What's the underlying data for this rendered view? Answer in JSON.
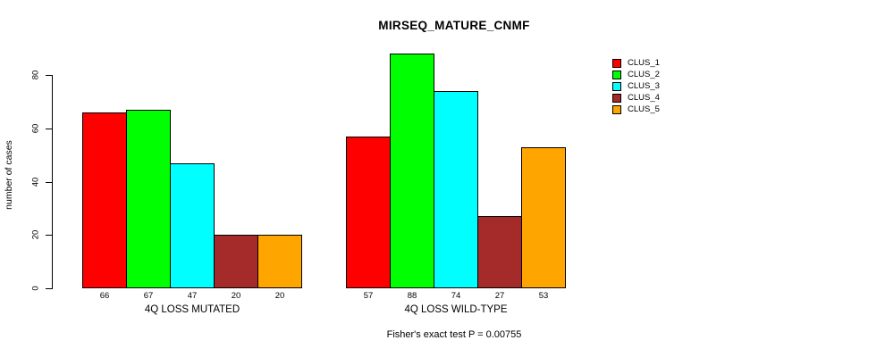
{
  "title": "MIRSEQ_MATURE_CNMF",
  "ylabel": "number of cases",
  "footer": "Fisher's exact test P = 0.00755",
  "chart_data": {
    "type": "bar",
    "title": "MIRSEQ_MATURE_CNMF",
    "ylabel": "number of cases",
    "xlabel": "",
    "ylim": [
      0,
      80
    ],
    "yticks": [
      0,
      20,
      40,
      60,
      80
    ],
    "grid": false,
    "legend_position": "top-right",
    "series": [
      "CLUS_1",
      "CLUS_2",
      "CLUS_3",
      "CLUS_4",
      "CLUS_5"
    ],
    "colors": [
      "#FF0000",
      "#00FF00",
      "#00FFFF",
      "#A52A2A",
      "#FFA500"
    ],
    "categories": [
      "4Q LOSS MUTATED",
      "4Q LOSS WILD-TYPE"
    ],
    "groups": [
      {
        "label": "4Q LOSS MUTATED",
        "values": [
          66,
          67,
          47,
          20,
          20
        ]
      },
      {
        "label": "4Q LOSS WILD-TYPE",
        "values": [
          57,
          88,
          74,
          27,
          53
        ]
      }
    ],
    "annotation": "Fisher's exact test P = 0.00755"
  }
}
